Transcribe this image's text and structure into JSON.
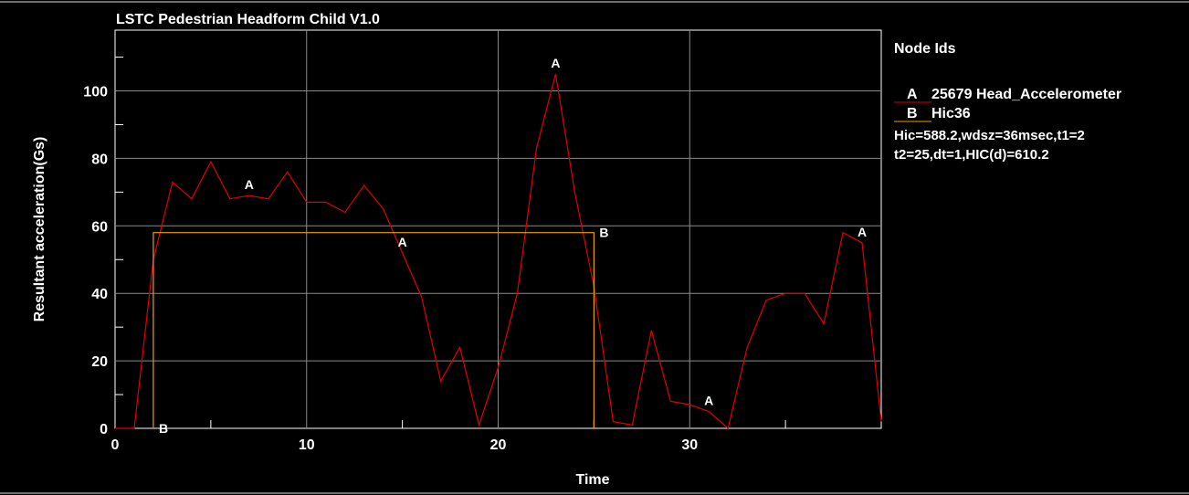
{
  "chart_data": {
    "type": "line",
    "title": "LSTC Pedestrian Headform Child V1.0",
    "xlabel": "Time",
    "ylabel": "Resultant acceleration(Gs)",
    "xlim": [
      0,
      40
    ],
    "ylim": [
      0,
      118
    ],
    "x_ticks": [
      "0",
      "10",
      "20",
      "30"
    ],
    "y_ticks": [
      "0",
      "20",
      "40",
      "60",
      "80",
      "100"
    ],
    "grid": true,
    "legend": {
      "title": "Node Ids",
      "placement": "right",
      "entries": [
        {
          "marker": "A",
          "label": "25679 Head_Accelerometer",
          "color": "#e00000"
        },
        {
          "marker": "B",
          "label": "Hic36",
          "color": "#e8a000"
        }
      ],
      "notes": [
        "Hic=588.2,wdsz=36msec,t1=2",
        "t2=25,dt=1,HIC(d)=610.2"
      ]
    },
    "series": [
      {
        "marker": "A",
        "color": "#e00000",
        "x": [
          0,
          1,
          2,
          3,
          4,
          5,
          6,
          7,
          8,
          9,
          10,
          11,
          12,
          13,
          14,
          15,
          16,
          17,
          18,
          19,
          20,
          21,
          22,
          23,
          24,
          25,
          26,
          27,
          28,
          29,
          30,
          31,
          32,
          33,
          34,
          35,
          36,
          37,
          38,
          39,
          40
        ],
        "y": [
          0,
          0,
          50,
          73,
          68,
          79,
          68,
          69,
          68,
          76,
          67,
          67,
          64,
          72,
          65,
          52,
          39,
          14,
          24,
          1,
          18,
          40,
          83,
          105,
          70,
          42,
          2,
          1,
          29,
          8,
          7,
          5,
          0,
          24,
          38,
          40,
          40,
          31,
          58,
          55,
          2
        ],
        "marker_label_x": [
          7,
          15,
          23,
          31,
          39
        ]
      },
      {
        "marker": "B",
        "color": "#e8a000",
        "x": [
          2,
          2,
          25,
          25
        ],
        "y": [
          0,
          58,
          58,
          0
        ],
        "marker_label_x": [
          2,
          25
        ],
        "marker_label_y": [
          0,
          58
        ]
      }
    ]
  }
}
